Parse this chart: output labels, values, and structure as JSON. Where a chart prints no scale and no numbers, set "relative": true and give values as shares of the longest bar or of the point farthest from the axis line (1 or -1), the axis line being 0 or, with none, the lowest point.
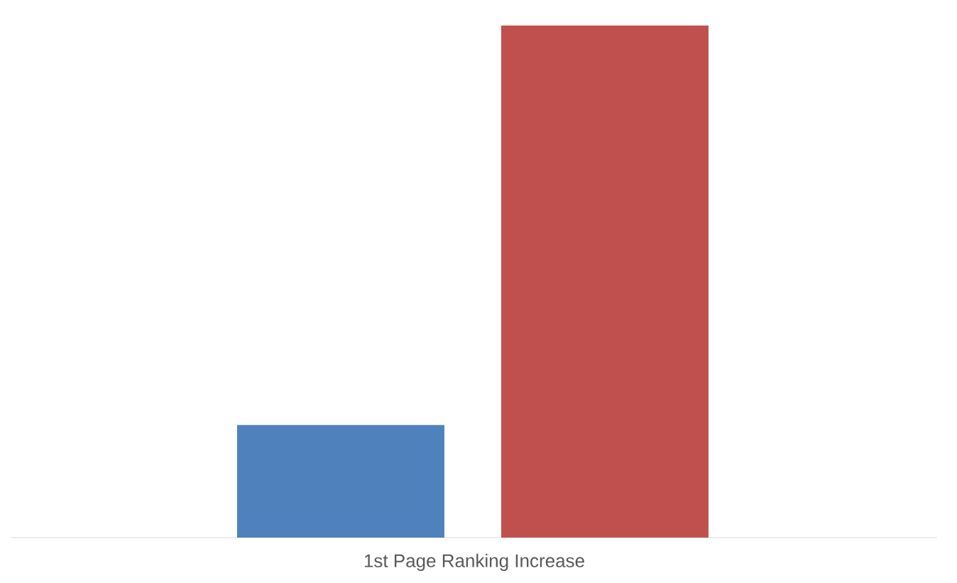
{
  "chart_data": {
    "type": "bar",
    "relative": true,
    "xlabel": "1st Page Ranking Increase",
    "categories": [
      null,
      null
    ],
    "values": [
      0.22,
      1
    ],
    "colors": [
      "#4f81bd",
      "#c0504d"
    ]
  }
}
